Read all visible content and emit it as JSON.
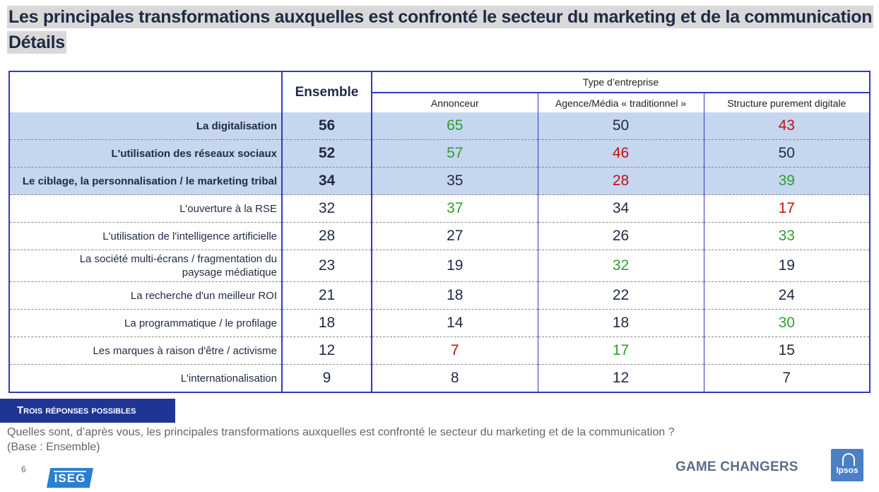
{
  "title": "Les principales transformations auxquelles est confronté le secteur du marketing et de la communication",
  "subtitle": "Détails",
  "table": {
    "ensemble_header": "Ensemble",
    "group_header": "Type d’entreprise",
    "sub_headers": [
      "Annonceur",
      "Agence/Média « traditionnel »",
      "Structure purement digitale"
    ],
    "rows": [
      {
        "label": "La digitalisation",
        "ensemble": "56",
        "v1": "65",
        "v2": "50",
        "v3": "43"
      },
      {
        "label": "L'utilisation des réseaux sociaux",
        "ensemble": "52",
        "v1": "57",
        "v2": "46",
        "v3": "50"
      },
      {
        "label": "Le ciblage, la personnalisation / le marketing tribal",
        "ensemble": "34",
        "v1": "35",
        "v2": "28",
        "v3": "39"
      },
      {
        "label": "L'ouverture à la RSE",
        "ensemble": "32",
        "v1": "37",
        "v2": "34",
        "v3": "17"
      },
      {
        "label": "L'utilisation de l'intelligence artificielle",
        "ensemble": "28",
        "v1": "27",
        "v2": "26",
        "v3": "33"
      },
      {
        "label": "La société multi-écrans / fragmentation du paysage médiatique",
        "ensemble": "23",
        "v1": "19",
        "v2": "32",
        "v3": "19"
      },
      {
        "label": "La recherche d'un meilleur ROI",
        "ensemble": "21",
        "v1": "18",
        "v2": "22",
        "v3": "24"
      },
      {
        "label": "La programmatique / le profilage",
        "ensemble": "18",
        "v1": "14",
        "v2": "18",
        "v3": "30"
      },
      {
        "label": "Les marques à raison d'être / activisme",
        "ensemble": "12",
        "v1": "7",
        "v2": "17",
        "v3": "15"
      },
      {
        "label": "L'internationalisation",
        "ensemble": "9",
        "v1": "8",
        "v2": "12",
        "v3": "7"
      }
    ]
  },
  "badge": "Trois réponses possibles",
  "question": "Quelles sont, d’après vous, les principales transformations auxquelles est confronté le secteur du marketing et de la communication ?",
  "base": "(Base : Ensemble)",
  "page_number": "6",
  "logo_iseg": "ISEG",
  "game_changers": "GAME CHANGERS",
  "logo_ipsos": "Ipsos",
  "colors": {
    "highlight_row": "#c6d6ef",
    "border": "#2e3bbd",
    "positive": "#2e9e2e",
    "negative": "#c01010",
    "badge": "#1f3596"
  }
}
